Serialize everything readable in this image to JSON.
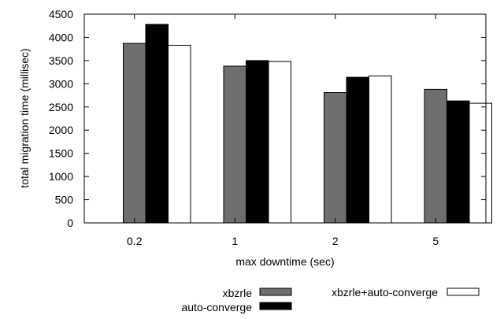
{
  "chart_data": {
    "type": "bar",
    "title": "",
    "xlabel": "max downtime (sec)",
    "ylabel": "total migration time (millisec)",
    "categories": [
      "0.2",
      "1",
      "2",
      "5"
    ],
    "ylim": [
      0,
      4500
    ],
    "yticks": [
      0,
      500,
      1000,
      1500,
      2000,
      2500,
      3000,
      3500,
      4000,
      4500
    ],
    "grid": false,
    "legend_placement": "bottom",
    "series": [
      {
        "name": "xbzrle",
        "color": "#6e6e6e",
        "values": [
          3870,
          3380,
          2810,
          2880
        ]
      },
      {
        "name": "auto-converge",
        "color": "#000000",
        "values": [
          4280,
          3500,
          3140,
          2630
        ]
      },
      {
        "name": "xbzrle+auto-converge",
        "color": "#ffffff",
        "values": [
          3830,
          3480,
          3170,
          2580
        ]
      }
    ]
  }
}
